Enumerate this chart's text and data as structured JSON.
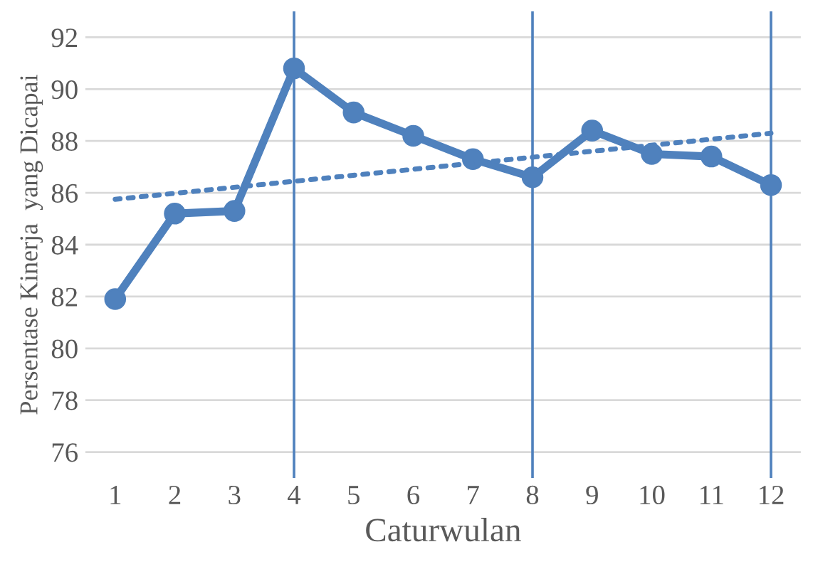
{
  "chart_data": {
    "type": "line",
    "xlabel": "Caturwulan",
    "ylabel": "Persentase Kinerja  yang Dicapai",
    "x": [
      1,
      2,
      3,
      4,
      5,
      6,
      7,
      8,
      9,
      10,
      11,
      12
    ],
    "series": [
      {
        "color": "#4f81bd",
        "values": [
          81.9,
          85.2,
          85.3,
          90.8,
          89.1,
          88.2,
          87.3,
          86.6,
          88.4,
          87.5,
          87.4,
          86.3
        ],
        "marker": "circle",
        "line_style": "solid"
      },
      {
        "type": "line",
        "color": "#4f81bd",
        "x": [
          1,
          12
        ],
        "values": [
          85.75,
          88.3
        ],
        "marker": "none",
        "line_style": "dotted"
      }
    ],
    "xlim": [
      0.5,
      12.5
    ],
    "xticks": [
      1,
      2,
      3,
      4,
      5,
      6,
      7,
      8,
      9,
      10,
      11,
      12
    ],
    "ylim": [
      75,
      93
    ],
    "yticks": [
      76,
      78,
      80,
      82,
      84,
      86,
      88,
      90,
      92
    ],
    "grid": "y",
    "legend": false,
    "ref_lines": [
      {
        "axis": "x",
        "value": 4,
        "color": "#4f81bd"
      },
      {
        "axis": "x",
        "value": 8,
        "color": "#4f81bd"
      },
      {
        "axis": "x",
        "value": 12,
        "color": "#4f81bd"
      }
    ]
  }
}
